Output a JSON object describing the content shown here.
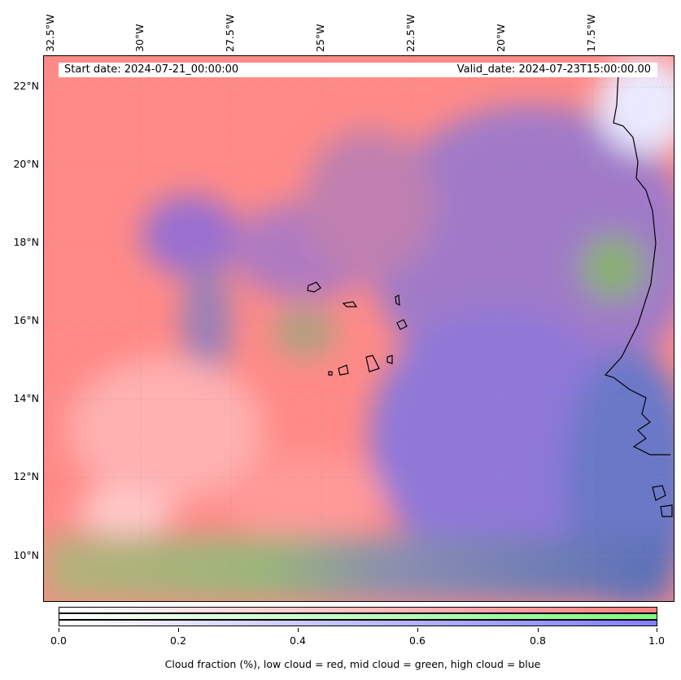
{
  "map": {
    "start_date": "Start date: 2024-07-21_00:00:00",
    "valid_date": "Valid_date: 2024-07-23T15:00:00.00",
    "lon_labels": [
      "32.5°W",
      "30°W",
      "27.5°W",
      "25°W",
      "22.5°W",
      "20°W",
      "17.5°W"
    ],
    "lat_labels": [
      "22°N",
      "20°N",
      "18°N",
      "16°N",
      "14°N",
      "12°N",
      "10°N"
    ],
    "colors": {
      "low_cloud": "#ff7f7f",
      "mid_cloud": "#7fff7f",
      "high_cloud": "#7f7fff"
    }
  },
  "colorbar": {
    "ticks": [
      "0.0",
      "0.2",
      "0.4",
      "0.6",
      "0.8",
      "1.0"
    ],
    "label": "Cloud fraction (%), low cloud = red, mid cloud = green, high cloud = blue"
  }
}
